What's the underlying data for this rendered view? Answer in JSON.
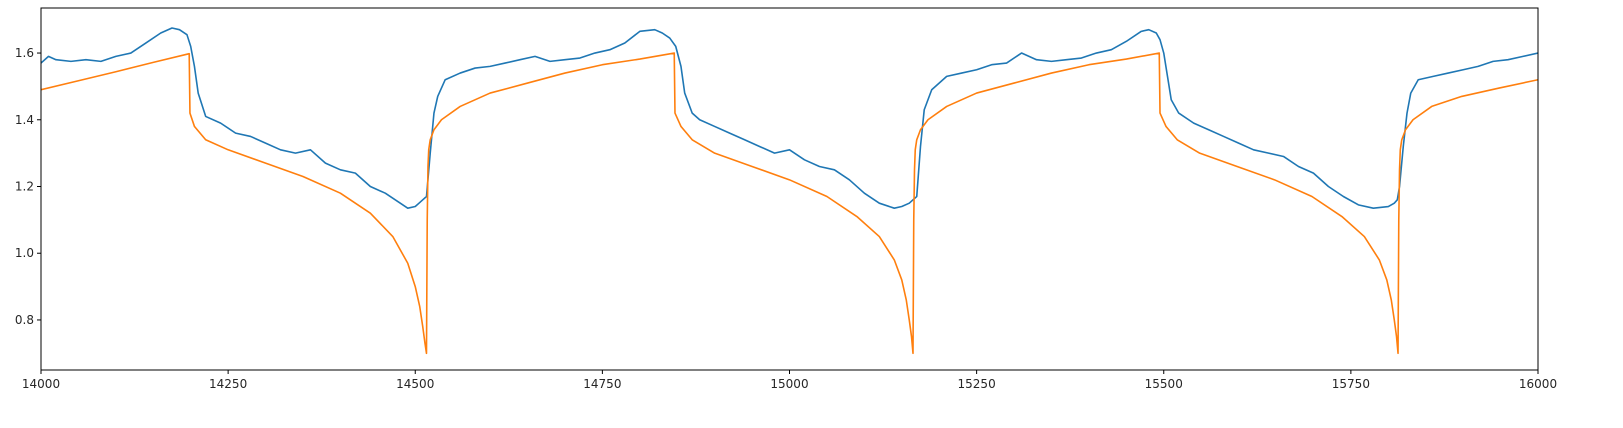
{
  "chart_data": {
    "type": "line",
    "title": "",
    "xlabel": "",
    "ylabel": "",
    "xlim": [
      14000,
      16000
    ],
    "ylim": [
      0.65,
      1.735
    ],
    "grid": false,
    "legend": "none",
    "x_ticks": [
      14000,
      14250,
      14500,
      14750,
      15000,
      15250,
      15500,
      15750,
      16000
    ],
    "y_ticks": [
      0.8,
      1.0,
      1.2,
      1.4,
      1.6
    ],
    "x_tick_labels": [
      "14000",
      "14250",
      "14500",
      "14750",
      "15000",
      "15250",
      "15500",
      "15750",
      "16000"
    ],
    "y_tick_labels": [
      "0.8",
      "1.0",
      "1.2",
      "1.4",
      "1.6"
    ],
    "series": [
      {
        "color": "#1f77b4",
        "x": [
          14000,
          14010,
          14020,
          14040,
          14060,
          14080,
          14100,
          14120,
          14140,
          14160,
          14175,
          14185,
          14195,
          14200,
          14205,
          14210,
          14220,
          14240,
          14260,
          14280,
          14300,
          14320,
          14340,
          14360,
          14380,
          14400,
          14420,
          14440,
          14460,
          14480,
          14490,
          14500,
          14505,
          14510,
          14515,
          14520,
          14525,
          14530,
          14540,
          14560,
          14580,
          14600,
          14620,
          14640,
          14660,
          14680,
          14700,
          14720,
          14740,
          14760,
          14780,
          14800,
          14820,
          14830,
          14840,
          14848,
          14855,
          14860,
          14870,
          14880,
          14900,
          14920,
          14940,
          14960,
          14980,
          15000,
          15020,
          15040,
          15060,
          15080,
          15100,
          15120,
          15140,
          15150,
          15160,
          15165,
          15170,
          15175,
          15180,
          15190,
          15210,
          15230,
          15250,
          15270,
          15290,
          15310,
          15330,
          15350,
          15370,
          15390,
          15410,
          15430,
          15450,
          15470,
          15480,
          15490,
          15495,
          15500,
          15505,
          15510,
          15520,
          15540,
          15560,
          15580,
          15600,
          15620,
          15640,
          15660,
          15680,
          15700,
          15720,
          15740,
          15760,
          15780,
          15800,
          15808,
          15812,
          15815,
          15820,
          15825,
          15830,
          15840,
          15860,
          15880,
          15900,
          15920,
          15940,
          15960,
          15980,
          16000
        ],
        "y": [
          1.57,
          1.59,
          1.58,
          1.575,
          1.58,
          1.575,
          1.59,
          1.6,
          1.63,
          1.66,
          1.675,
          1.67,
          1.655,
          1.62,
          1.56,
          1.48,
          1.41,
          1.39,
          1.36,
          1.35,
          1.33,
          1.31,
          1.3,
          1.31,
          1.27,
          1.25,
          1.24,
          1.2,
          1.18,
          1.15,
          1.135,
          1.14,
          1.15,
          1.16,
          1.17,
          1.3,
          1.42,
          1.47,
          1.52,
          1.54,
          1.555,
          1.56,
          1.57,
          1.58,
          1.59,
          1.575,
          1.58,
          1.585,
          1.6,
          1.61,
          1.63,
          1.665,
          1.67,
          1.66,
          1.645,
          1.62,
          1.56,
          1.48,
          1.42,
          1.4,
          1.38,
          1.36,
          1.34,
          1.32,
          1.3,
          1.31,
          1.28,
          1.26,
          1.25,
          1.22,
          1.18,
          1.15,
          1.135,
          1.14,
          1.15,
          1.16,
          1.17,
          1.32,
          1.43,
          1.49,
          1.53,
          1.54,
          1.55,
          1.565,
          1.57,
          1.6,
          1.58,
          1.575,
          1.58,
          1.585,
          1.6,
          1.61,
          1.635,
          1.665,
          1.67,
          1.66,
          1.64,
          1.6,
          1.53,
          1.46,
          1.42,
          1.39,
          1.37,
          1.35,
          1.33,
          1.31,
          1.3,
          1.29,
          1.26,
          1.24,
          1.2,
          1.17,
          1.145,
          1.135,
          1.14,
          1.15,
          1.16,
          1.2,
          1.32,
          1.42,
          1.48,
          1.52,
          1.53,
          1.54,
          1.55,
          1.56,
          1.575,
          1.58,
          1.59,
          1.6
        ]
      },
      {
        "color": "#ff7f0e",
        "x": [
          14000,
          14050,
          14100,
          14150,
          14198,
          14199,
          14205,
          14220,
          14250,
          14300,
          14350,
          14400,
          14440,
          14470,
          14490,
          14500,
          14506,
          14510,
          14513,
          14515,
          14516,
          14517,
          14518,
          14520,
          14525,
          14535,
          14560,
          14600,
          14650,
          14700,
          14750,
          14800,
          14846,
          14847,
          14855,
          14870,
          14900,
          14950,
          15000,
          15050,
          15090,
          15120,
          15140,
          15150,
          15156,
          15160,
          15163,
          15165,
          15166,
          15167,
          15168,
          15170,
          15175,
          15185,
          15210,
          15250,
          15300,
          15350,
          15400,
          15450,
          15494,
          15495,
          15503,
          15518,
          15548,
          15598,
          15648,
          15698,
          15738,
          15768,
          15788,
          15798,
          15804,
          15808,
          15811,
          15813,
          15814,
          15815,
          15816,
          15818,
          15823,
          15833,
          15858,
          15898,
          15948,
          16000
        ],
        "y": [
          1.49,
          1.517,
          1.544,
          1.572,
          1.598,
          1.42,
          1.38,
          1.34,
          1.31,
          1.27,
          1.23,
          1.18,
          1.12,
          1.05,
          0.97,
          0.9,
          0.84,
          0.78,
          0.73,
          0.7,
          1.1,
          1.26,
          1.31,
          1.34,
          1.37,
          1.4,
          1.44,
          1.48,
          1.51,
          1.54,
          1.565,
          1.582,
          1.6,
          1.42,
          1.38,
          1.34,
          1.3,
          1.26,
          1.22,
          1.17,
          1.11,
          1.05,
          0.98,
          0.92,
          0.86,
          0.8,
          0.75,
          0.7,
          1.1,
          1.25,
          1.31,
          1.34,
          1.37,
          1.4,
          1.44,
          1.48,
          1.51,
          1.54,
          1.565,
          1.582,
          1.6,
          1.42,
          1.38,
          1.34,
          1.3,
          1.26,
          1.22,
          1.17,
          1.11,
          1.05,
          0.98,
          0.92,
          0.86,
          0.8,
          0.75,
          0.7,
          1.1,
          1.25,
          1.31,
          1.34,
          1.37,
          1.4,
          1.44,
          1.47,
          1.495,
          1.52
        ]
      }
    ]
  }
}
